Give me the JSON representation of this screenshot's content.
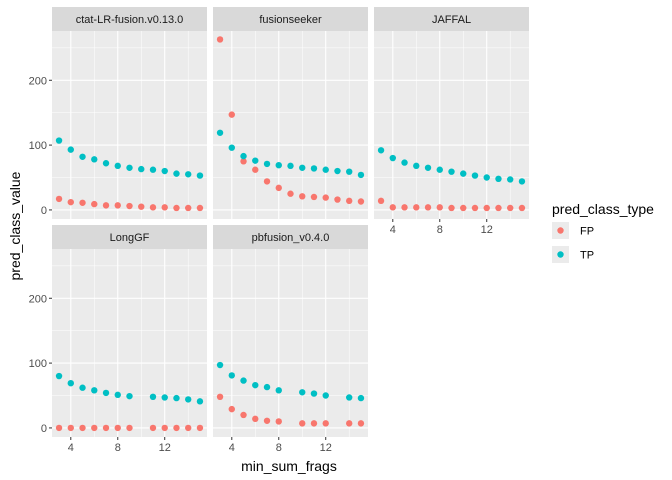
{
  "chart_data": {
    "type": "scatter",
    "xlabel": "min_sum_frags",
    "ylabel": "pred_class_value",
    "xlim": [
      2.4,
      15.6
    ],
    "ylim": [
      -14,
      276
    ],
    "x_ticks": [
      4,
      8,
      12
    ],
    "x_tick_labels": [
      "4",
      "8",
      "12"
    ],
    "y_ticks": [
      0,
      100,
      200
    ],
    "y_tick_labels": [
      "0",
      "100",
      "200"
    ],
    "grid": true,
    "legend": {
      "title": "pred_class_type",
      "placement": "right",
      "entries": [
        {
          "label": "FP",
          "color": "#F8766D"
        },
        {
          "label": "TP",
          "color": "#00BFC4"
        }
      ]
    },
    "colors": {
      "FP": "#F8766D",
      "TP": "#00BFC4"
    },
    "panels": [
      {
        "title": "ctat-LR-fusion.v0.13.0",
        "series": [
          {
            "name": "FP",
            "x": [
              3,
              4,
              5,
              6,
              7,
              8,
              9,
              10,
              11,
              12,
              13,
              14,
              15
            ],
            "y": [
              17,
              12,
              11,
              9,
              7,
              7,
              6,
              5,
              4,
              4,
              3,
              3,
              3
            ]
          },
          {
            "name": "TP",
            "x": [
              3,
              4,
              5,
              6,
              7,
              8,
              9,
              10,
              11,
              12,
              13,
              14,
              15
            ],
            "y": [
              107,
              93,
              82,
              78,
              72,
              68,
              65,
              63,
              62,
              60,
              56,
              55,
              53
            ]
          }
        ]
      },
      {
        "title": "fusionseeker",
        "series": [
          {
            "name": "FP",
            "x": [
              3,
              4,
              5,
              6,
              7,
              8,
              9,
              10,
              11,
              12,
              13,
              14,
              15
            ],
            "y": [
              263,
              147,
              75,
              62,
              44,
              34,
              25,
              21,
              20,
              19,
              16,
              14,
              13
            ]
          },
          {
            "name": "TP",
            "x": [
              3,
              4,
              5,
              6,
              7,
              8,
              9,
              10,
              11,
              12,
              13,
              14,
              15
            ],
            "y": [
              119,
              96,
              83,
              76,
              71,
              69,
              68,
              65,
              64,
              62,
              60,
              59,
              54
            ]
          }
        ]
      },
      {
        "title": "JAFFAL",
        "series": [
          {
            "name": "FP",
            "x": [
              3,
              4,
              5,
              6,
              7,
              8,
              9,
              10,
              11,
              12,
              13,
              14,
              15
            ],
            "y": [
              14,
              4,
              4,
              4,
              4,
              4,
              3,
              3,
              3,
              3,
              3,
              3,
              3
            ]
          },
          {
            "name": "TP",
            "x": [
              3,
              4,
              5,
              6,
              7,
              8,
              9,
              10,
              11,
              12,
              13,
              14,
              15
            ],
            "y": [
              92,
              80,
              73,
              68,
              65,
              62,
              59,
              56,
              53,
              50,
              48,
              47,
              44
            ]
          }
        ]
      },
      {
        "title": "LongGF",
        "series": [
          {
            "name": "FP",
            "x": [
              3,
              4,
              5,
              6,
              7,
              8,
              9,
              11,
              12,
              13,
              14,
              15
            ],
            "y": [
              0,
              0,
              0,
              0,
              0,
              0,
              0,
              0,
              0,
              0,
              0,
              0
            ]
          },
          {
            "name": "TP",
            "x": [
              3,
              4,
              5,
              6,
              7,
              8,
              9,
              11,
              12,
              13,
              14,
              15
            ],
            "y": [
              80,
              69,
              62,
              58,
              54,
              51,
              49,
              48,
              47,
              46,
              44,
              41
            ]
          }
        ]
      },
      {
        "title": "pbfusion_v0.4.0",
        "series": [
          {
            "name": "FP",
            "x": [
              3,
              4,
              5,
              6,
              7,
              8,
              10,
              11,
              12,
              14,
              15
            ],
            "y": [
              48,
              29,
              20,
              14,
              11,
              10,
              7,
              7,
              7,
              7,
              7
            ]
          },
          {
            "name": "TP",
            "x": [
              3,
              4,
              5,
              6,
              7,
              8,
              10,
              11,
              12,
              14,
              15
            ],
            "y": [
              97,
              81,
              73,
              66,
              63,
              58,
              55,
              53,
              50,
              47,
              46
            ]
          }
        ]
      }
    ]
  }
}
